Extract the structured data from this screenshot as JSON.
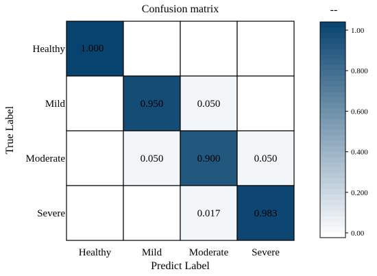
{
  "chart_data": {
    "type": "heatmap",
    "title": "Confusion matrix",
    "xlabel": "Predict Label",
    "ylabel": "True Label",
    "x_categories": [
      "Healthy",
      "Mild",
      "Moderate",
      "Severe"
    ],
    "y_categories": [
      "Healthy",
      "Mild",
      "Moderate",
      "Severe"
    ],
    "values": [
      [
        1.0,
        0.0,
        0.0,
        0.0
      ],
      [
        0.0,
        0.95,
        0.05,
        0.0
      ],
      [
        0.0,
        0.05,
        0.9,
        0.05
      ],
      [
        0.0,
        0.0,
        0.017,
        0.983
      ]
    ],
    "cell_labels": [
      [
        "1.000",
        "",
        "",
        ""
      ],
      [
        "",
        "0.950",
        "0.050",
        ""
      ],
      [
        "",
        "0.050",
        "0.900",
        "0.050"
      ],
      [
        "",
        "",
        "0.017",
        "0.983"
      ]
    ],
    "colorbar": {
      "title": "--",
      "range": [
        0,
        1
      ],
      "ticks": [
        "0.00",
        "0.200",
        "0.400",
        "0.600",
        "0.800",
        "1.00"
      ],
      "tick_values": [
        0,
        0.2,
        0.4,
        0.6,
        0.8,
        1.0
      ],
      "color_low": "#ffffff",
      "color_high": "#08436f"
    },
    "colors": {
      "cell_border": "#000000",
      "dark_cell": "#08436f",
      "light_cell": "#f2f6f9"
    }
  }
}
